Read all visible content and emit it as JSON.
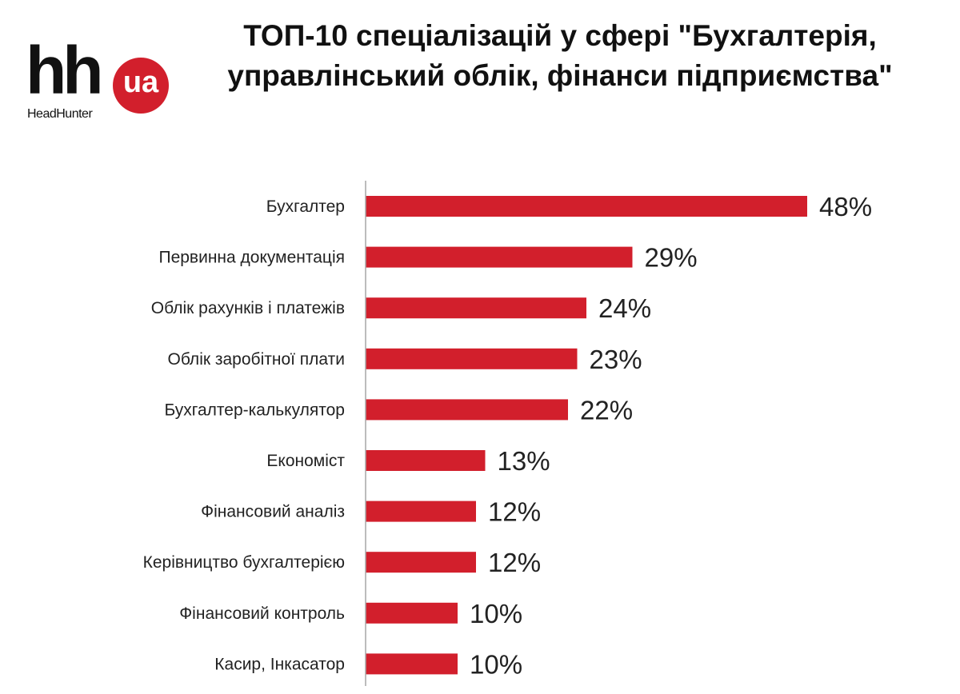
{
  "logo": {
    "mark": "hh",
    "badge": "ua",
    "subtitle": "HeadHunter"
  },
  "title_lines": [
    "ТОП-10 спеціалізацій у сфері \"Бухгалтерія,",
    "управлінський облік, фінанси підприємства\""
  ],
  "colors": {
    "bar": "#d21f2c",
    "axis": "#a6a6a6",
    "text": "#222222",
    "logo_badge": "#d21f2c"
  },
  "chart_data": {
    "type": "bar",
    "orientation": "horizontal",
    "title": "ТОП-10 спеціалізацій у сфері \"Бухгалтерія, управлінський облік, фінанси підприємства\"",
    "categories": [
      "Бухгалтер",
      "Первинна документація",
      "Облік рахунків і платежів",
      "Облік заробітної плати",
      "Бухгалтер-калькулятор",
      "Економіст",
      "Фінансовий аналіз",
      "Керівництво бухгалтерією",
      "Фінансовий контроль",
      "Касир, Інкасатор"
    ],
    "values": [
      48,
      29,
      24,
      23,
      22,
      13,
      12,
      12,
      10,
      10
    ],
    "value_labels": [
      "48%",
      "29%",
      "24%",
      "23%",
      "22%",
      "13%",
      "12%",
      "12%",
      "10%",
      "10%"
    ],
    "unit": "%",
    "xlim": [
      0,
      50
    ],
    "grid": false,
    "legend": "none"
  }
}
